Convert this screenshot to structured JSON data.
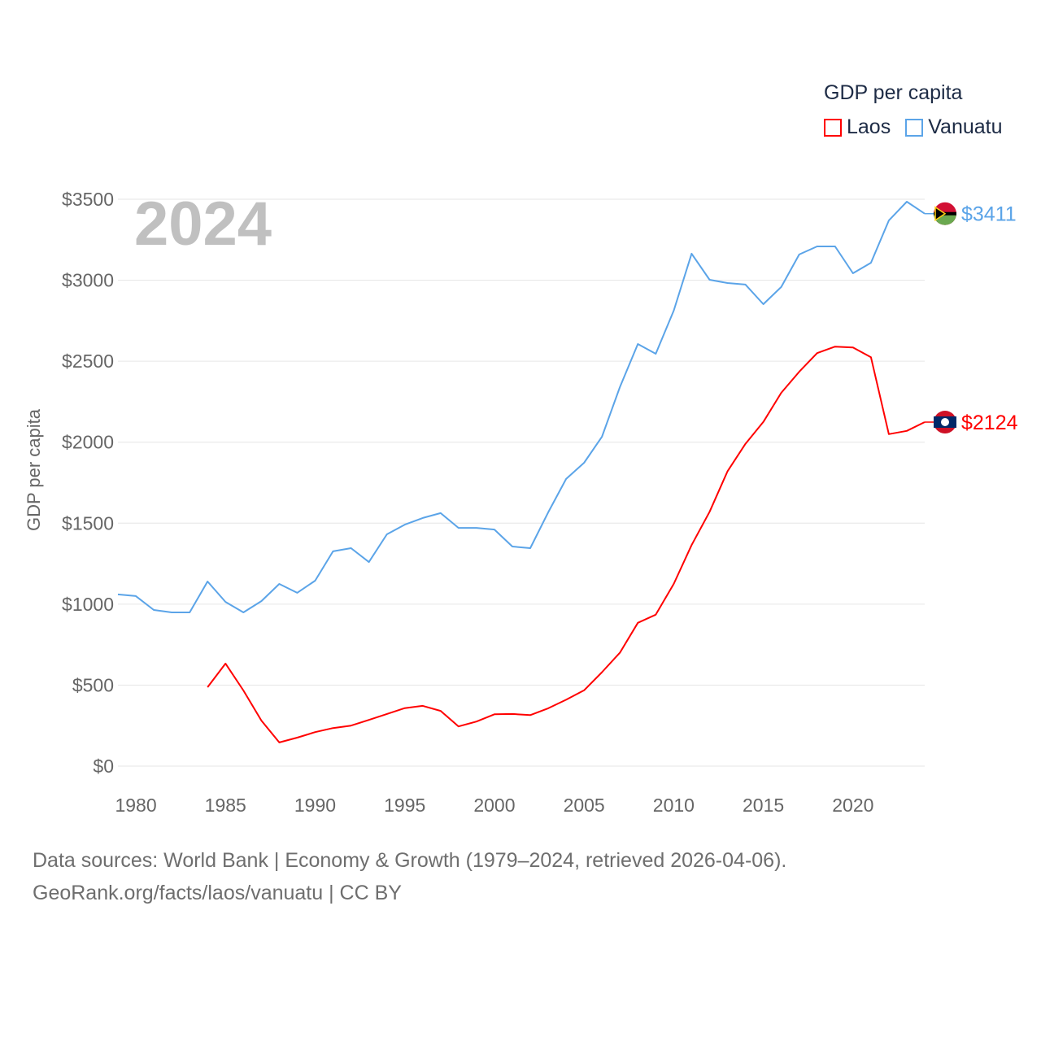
{
  "chart_data": {
    "type": "line",
    "title": "GDP per capita",
    "year_label": "2024",
    "ylabel": "GDP per capita",
    "xlabel": "",
    "xlim": [
      1979,
      2024
    ],
    "ylim": [
      0,
      3500
    ],
    "x_ticks": [
      "1980",
      "1985",
      "1990",
      "1995",
      "2000",
      "2005",
      "2010",
      "2015",
      "2020"
    ],
    "y_ticks": [
      "$0",
      "$500",
      "$1000",
      "$1500",
      "$2000",
      "$2500",
      "$3000",
      "$3500"
    ],
    "grid": true,
    "legend_position": "top-right",
    "series": [
      {
        "name": "Laos",
        "color": "#ff0000",
        "end_label": "$2124",
        "x": [
          1984,
          1985,
          1986,
          1987,
          1988,
          1989,
          1990,
          1991,
          1992,
          1993,
          1994,
          1995,
          1996,
          1997,
          1998,
          1999,
          2000,
          2001,
          2002,
          2003,
          2004,
          2005,
          2006,
          2007,
          2008,
          2009,
          2010,
          2011,
          2012,
          2013,
          2014,
          2015,
          2016,
          2017,
          2018,
          2019,
          2020,
          2021,
          2022,
          2023,
          2024
        ],
        "values": [
          487,
          633,
          467,
          281,
          146,
          176,
          210,
          235,
          250,
          285,
          322,
          358,
          372,
          341,
          245,
          275,
          320,
          322,
          315,
          357,
          410,
          468,
          580,
          700,
          885,
          935,
          1125,
          1365,
          1570,
          1820,
          1990,
          2125,
          2305,
          2435,
          2550,
          2590,
          2585,
          2525,
          2050,
          2070,
          2124
        ]
      },
      {
        "name": "Vanuatu",
        "color": "#5ba4e8",
        "end_label": "$3411",
        "x": [
          1979,
          1980,
          1981,
          1982,
          1983,
          1984,
          1985,
          1986,
          1987,
          1988,
          1989,
          1990,
          1991,
          1992,
          1993,
          1994,
          1995,
          1996,
          1997,
          1998,
          1999,
          2000,
          2001,
          2002,
          2003,
          2004,
          2005,
          2006,
          2007,
          2008,
          2009,
          2010,
          2011,
          2012,
          2013,
          2014,
          2015,
          2016,
          2017,
          2018,
          2019,
          2020,
          2021,
          2022,
          2023,
          2024
        ],
        "values": [
          1060,
          1050,
          964,
          949,
          949,
          1140,
          1014,
          949,
          1019,
          1125,
          1070,
          1145,
          1326,
          1346,
          1260,
          1431,
          1491,
          1532,
          1562,
          1471,
          1471,
          1461,
          1356,
          1346,
          1567,
          1773,
          1873,
          2034,
          2340,
          2606,
          2546,
          2812,
          3164,
          3003,
          2983,
          2973,
          2852,
          2958,
          3159,
          3209,
          3209,
          3043,
          3108,
          3369,
          3485,
          3411
        ]
      }
    ]
  },
  "footer": {
    "line1": "Data sources: World Bank | Economy & Growth (1979–2024, retrieved 2026-04-06).",
    "line2": "GeoRank.org/facts/laos/vanuatu | CC BY"
  }
}
